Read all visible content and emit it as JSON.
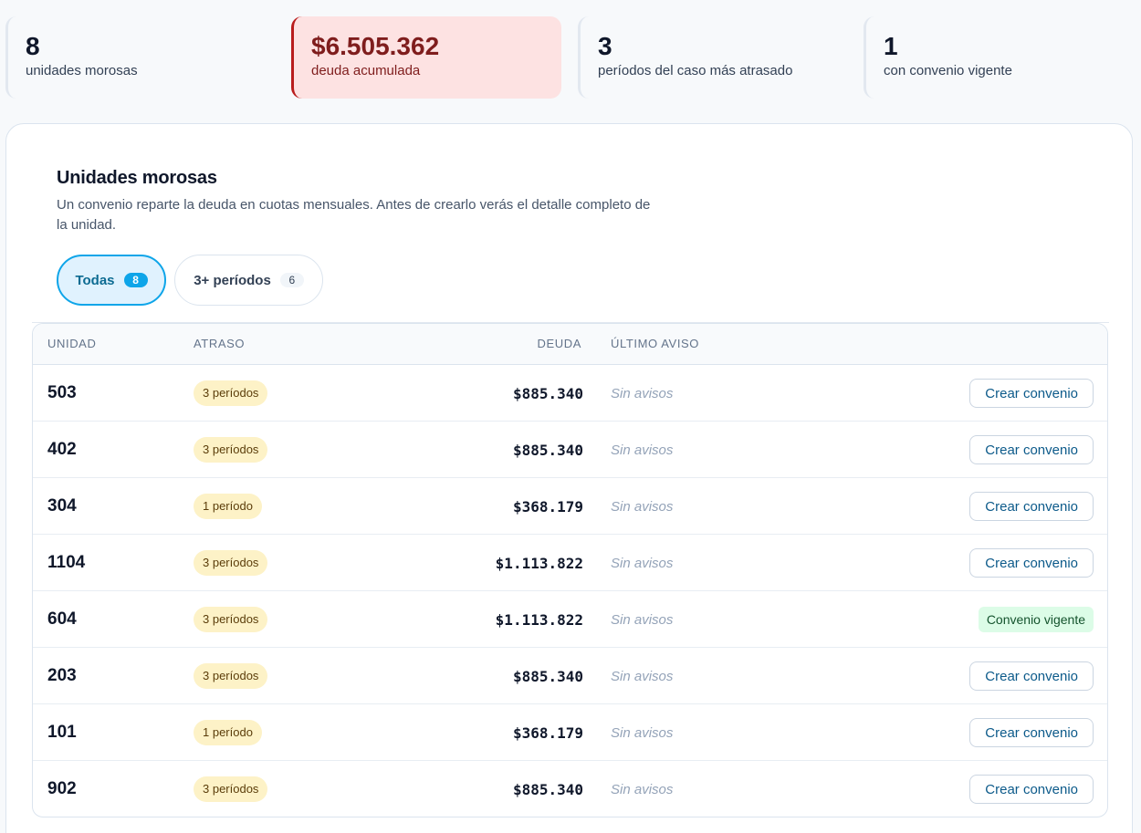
{
  "stats": [
    {
      "value": "8",
      "label": "unidades morosas"
    },
    {
      "value": "$6.505.362",
      "label": "deuda acumulada"
    },
    {
      "value": "3",
      "label": "períodos del caso más atrasado"
    },
    {
      "value": "1",
      "label": "con convenio vigente"
    }
  ],
  "panel": {
    "title": "Unidades morosas",
    "description": "Un convenio reparte la deuda en cuotas mensuales. Antes de crearlo verás el detalle completo de la unidad."
  },
  "filters": [
    {
      "label": "Todas",
      "count": "8",
      "active": true
    },
    {
      "label": "3+ períodos",
      "count": "6",
      "active": false
    }
  ],
  "table": {
    "headers": {
      "unit": "Unidad",
      "late": "Atraso",
      "debt": "Deuda",
      "notice": "Último aviso"
    },
    "rows": [
      {
        "unit": "503",
        "late": "3 períodos",
        "debt": "$885.340",
        "notice": "Sin avisos",
        "action": "Crear convenio",
        "vigente": false
      },
      {
        "unit": "402",
        "late": "3 períodos",
        "debt": "$885.340",
        "notice": "Sin avisos",
        "action": "Crear convenio",
        "vigente": false
      },
      {
        "unit": "304",
        "late": "1 período",
        "debt": "$368.179",
        "notice": "Sin avisos",
        "action": "Crear convenio",
        "vigente": false
      },
      {
        "unit": "1104",
        "late": "3 períodos",
        "debt": "$1.113.822",
        "notice": "Sin avisos",
        "action": "Crear convenio",
        "vigente": false
      },
      {
        "unit": "604",
        "late": "3 períodos",
        "debt": "$1.113.822",
        "notice": "Sin avisos",
        "action": "Convenio vigente",
        "vigente": true
      },
      {
        "unit": "203",
        "late": "3 períodos",
        "debt": "$885.340",
        "notice": "Sin avisos",
        "action": "Crear convenio",
        "vigente": false
      },
      {
        "unit": "101",
        "late": "1 período",
        "debt": "$368.179",
        "notice": "Sin avisos",
        "action": "Crear convenio",
        "vigente": false
      },
      {
        "unit": "902",
        "late": "3 períodos",
        "debt": "$885.340",
        "notice": "Sin avisos",
        "action": "Crear convenio",
        "vigente": false
      }
    ]
  },
  "colors": {
    "accent": "#0ea5e9",
    "danger": "#b91c1c",
    "danger_bg": "#fde2e2",
    "badge_bg": "#fdf2c7",
    "success_bg": "#dcfce7"
  }
}
